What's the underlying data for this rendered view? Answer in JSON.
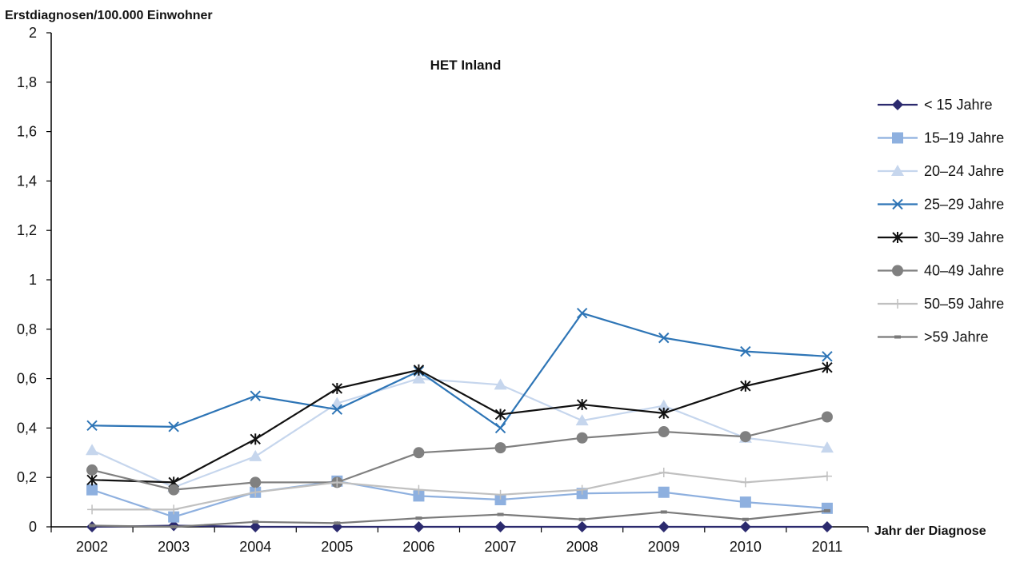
{
  "chart_data": {
    "type": "line",
    "title": "HET Inland",
    "ylabel": "Erstdiagnosen/100.000 Einwohner",
    "xlabel": "Jahr der Diagnose",
    "categories": [
      "2002",
      "2003",
      "2004",
      "2005",
      "2006",
      "2007",
      "2008",
      "2009",
      "2010",
      "2011"
    ],
    "ylim": [
      0,
      2
    ],
    "yticks": [
      "0",
      "0,2",
      "0,4",
      "0,6",
      "0,8",
      "1",
      "1,2",
      "1,4",
      "1,6",
      "1,8",
      "2"
    ],
    "grid": false,
    "legend_position": "right",
    "series": [
      {
        "name": "< 15 Jahre",
        "color": "#2b2a6e",
        "marker": "diamond",
        "values": [
          0,
          0.005,
          0,
          0,
          0,
          0,
          0,
          0,
          0,
          0
        ]
      },
      {
        "name": "15–19 Jahre",
        "color": "#8eb0df",
        "marker": "square",
        "values": [
          0.15,
          0.04,
          0.14,
          0.185,
          0.125,
          0.11,
          0.135,
          0.14,
          0.1,
          0.075
        ]
      },
      {
        "name": "20–24 Jahre",
        "color": "#c6d6ed",
        "marker": "triangle",
        "values": [
          0.31,
          0.16,
          0.285,
          0.5,
          0.6,
          0.575,
          0.43,
          0.49,
          0.36,
          0.32
        ]
      },
      {
        "name": "25–29 Jahre",
        "color": "#2e75b6",
        "marker": "x",
        "values": [
          0.41,
          0.405,
          0.53,
          0.475,
          0.63,
          0.4,
          0.865,
          0.765,
          0.71,
          0.69
        ]
      },
      {
        "name": "30–39 Jahre",
        "color": "#111111",
        "marker": "star",
        "values": [
          0.19,
          0.18,
          0.355,
          0.56,
          0.635,
          0.455,
          0.495,
          0.46,
          0.57,
          0.645
        ]
      },
      {
        "name": "40–49 Jahre",
        "color": "#808080",
        "marker": "circle",
        "values": [
          0.23,
          0.15,
          0.18,
          0.18,
          0.3,
          0.32,
          0.36,
          0.385,
          0.365,
          0.445
        ]
      },
      {
        "name": "50–59 Jahre",
        "color": "#c0c0c0",
        "marker": "plus",
        "values": [
          0.07,
          0.07,
          0.14,
          0.18,
          0.15,
          0.13,
          0.15,
          0.22,
          0.18,
          0.205
        ]
      },
      {
        "name": ">59 Jahre",
        "color": "#7a7a7a",
        "marker": "dash",
        "values": [
          0.005,
          0.0,
          0.02,
          0.015,
          0.035,
          0.05,
          0.03,
          0.06,
          0.03,
          0.065
        ]
      }
    ]
  }
}
